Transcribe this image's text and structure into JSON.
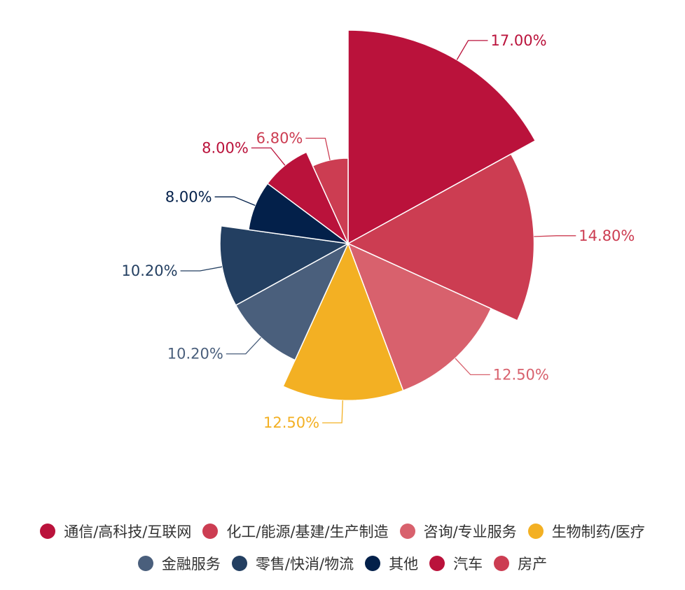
{
  "chart_data": {
    "type": "pie",
    "subtype": "rose",
    "series": [
      {
        "name": "通信/高科技/互联网",
        "value": 17.0,
        "label": "17.00%",
        "color": "#ba123b"
      },
      {
        "name": "化工/能源/基建/生产制造",
        "value": 14.8,
        "label": "14.80%",
        "color": "#cc3d52"
      },
      {
        "name": "咨询/专业服务",
        "value": 12.5,
        "label": "12.50%",
        "color": "#d8616d"
      },
      {
        "name": "生物制药/医疗",
        "value": 12.5,
        "label": "12.50%",
        "color": "#f3b023"
      },
      {
        "name": "金融服务",
        "value": 10.2,
        "label": "10.20%",
        "color": "#4a5f7c"
      },
      {
        "name": "零售/快消/物流",
        "value": 10.2,
        "label": "10.20%",
        "color": "#233f61"
      },
      {
        "name": "其他",
        "value": 8.0,
        "label": "8.00%",
        "color": "#03204a"
      },
      {
        "name": "汽车",
        "value": 8.0,
        "label": "8.00%",
        "color": "#ba123b"
      },
      {
        "name": "房产",
        "value": 6.8,
        "label": "6.80%",
        "color": "#cc3d52"
      }
    ],
    "legend_position": "bottom"
  }
}
